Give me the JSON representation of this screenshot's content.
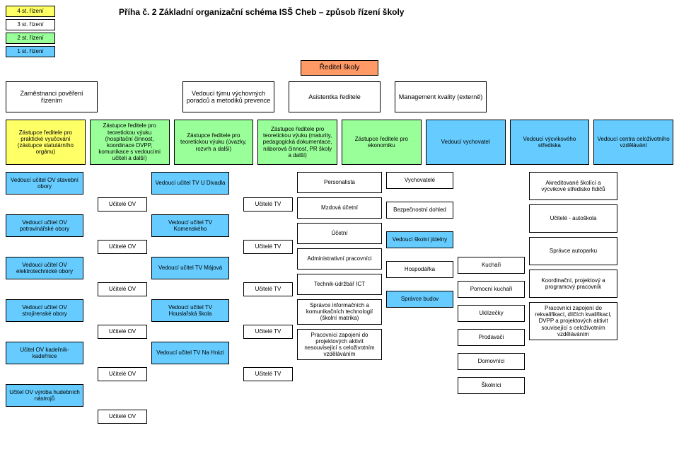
{
  "colors": {
    "level4": "#ffff66",
    "level3": "#ffffff",
    "level2": "#99ff99",
    "level1": "#66ccff",
    "director": "#ff9966",
    "deputy_green": "#99ff99",
    "vychovatel": "#66ccff",
    "vycvik": "#66ccff",
    "celoziv": "#66ccff",
    "ov_blue": "#66ccff",
    "tv_blue": "#99ccee",
    "plain": "#ffffff",
    "border": "#000000",
    "jidelna": "#66ccff"
  },
  "legend": [
    {
      "label": "4 st. řízení",
      "colorKey": "level4"
    },
    {
      "label": "3 st. řízení",
      "colorKey": "level3"
    },
    {
      "label": "2 st. řízení",
      "colorKey": "level2"
    },
    {
      "label": "1 st. řízení",
      "colorKey": "level1"
    }
  ],
  "pageTitle": "Příha č. 2 Základní organizační schéma ISŠ Cheb – způsob řízení školy",
  "director": "Ředitel školy",
  "topRow": [
    "Zaměstnanci pověření řízením",
    "Vedoucí týmu výchovných poradců a metodiků prevence",
    "Asistentka ředitele",
    "Management kvality (externě)"
  ],
  "deputies": [
    {
      "text": "Zástupce ředitele pro praktické vyučování (zástupce statutárního orgánu)",
      "colorKey": "level4"
    },
    {
      "text": "Zástupce ředitele pro teoretickou výuku (hospitační činnost, koordinace DVPP, komunikace s vedoucími učiteli a další)",
      "colorKey": "level2"
    },
    {
      "text": "Zástupce ředitele pro teoretickou výuku (úvazky, rozvrh a další)",
      "colorKey": "level2"
    },
    {
      "text": "Zástupce ředitele pro teoretickou výuku (maturity, pedagogická dokumentace, náborová činnost, PR školy a další)",
      "colorKey": "level2"
    },
    {
      "text": "Zástupce ředitele pro ekonomiku",
      "colorKey": "level2"
    },
    {
      "text": "Vedoucí vychovatel",
      "colorKey": "vychovatel"
    },
    {
      "text": "Vedoucí výcvikového střediska",
      "colorKey": "vycvik"
    },
    {
      "text": "Vedoucí centra celoživotního vzdělávání",
      "colorKey": "celoziv"
    }
  ],
  "ovCol": [
    {
      "lead": "Vedoucí učitel OV stavební obory",
      "sub": "Učitelé OV"
    },
    {
      "lead": "Vedoucí učitel OV potravinářské obory",
      "sub": "Učitelé OV"
    },
    {
      "lead": "Vedoucí učitel OV elektrotechnické obory",
      "sub": "Učitelé OV"
    },
    {
      "lead": "Vedoucí učitel OV strojírenské obory",
      "sub": "Učitelé OV"
    },
    {
      "lead": "Učitel OV kadeřník-kadeřnice",
      "sub": "Učitelé OV"
    },
    {
      "lead": "Učitel OV výroba hudebních nástrojů",
      "sub": "Učitelé OV"
    }
  ],
  "tvCol": [
    {
      "lead": "Vedoucí učitel TV U Divadla",
      "sub": "Učitelé TV"
    },
    {
      "lead": "Vedoucí učitel TV Komenského",
      "sub": "Učitelé TV"
    },
    {
      "lead": "Vedoucí učitel TV Májová",
      "sub": "Učitelé TV"
    },
    {
      "lead": "Vedoucí učitel TV Houslařská škola",
      "sub": "Učitelé TV"
    },
    {
      "lead": "Vedoucí učitel TV Na Hrázi",
      "sub": "Učitelé TV"
    }
  ],
  "econCol": [
    "Personalista",
    "Mzdová účetní",
    "Účetní",
    "Administrativní pracovníci",
    "Technik-údržbář ICT",
    "Správce informačních a komunikačních technologií (školní matrika)",
    "Pracovníci zapojení do projektových aktivit nesouvisející s celoživotním vzděláváním"
  ],
  "vychCol1": [
    {
      "text": "Vychovatelé",
      "colorKey": "plain"
    },
    {
      "text": "Bezpečnostní dohled",
      "colorKey": "plain"
    },
    {
      "text": "Vedoucí školní jídelny",
      "colorKey": "jidelna"
    },
    {
      "text": "Hospodářka",
      "colorKey": "plain"
    },
    {
      "text": "Správce budov",
      "colorKey": "jidelna"
    }
  ],
  "vychCol2": [
    "Kuchaři",
    "Pomocní kuchaři",
    "Uklízečky",
    "Prodavači",
    "Domovníci",
    "Školníci"
  ],
  "rightCol": [
    "Akreditované školící a výcvikové středisko řidičů",
    "Učitelé - autoškola",
    "Správce autoparku",
    "Koordinační, projektový a programový pracovník",
    "Pracovníci zapojení do rekvalifikací, dílčích kvalifikací, DVPP a projektových aktivit související s celoživotním vzděláváním"
  ]
}
